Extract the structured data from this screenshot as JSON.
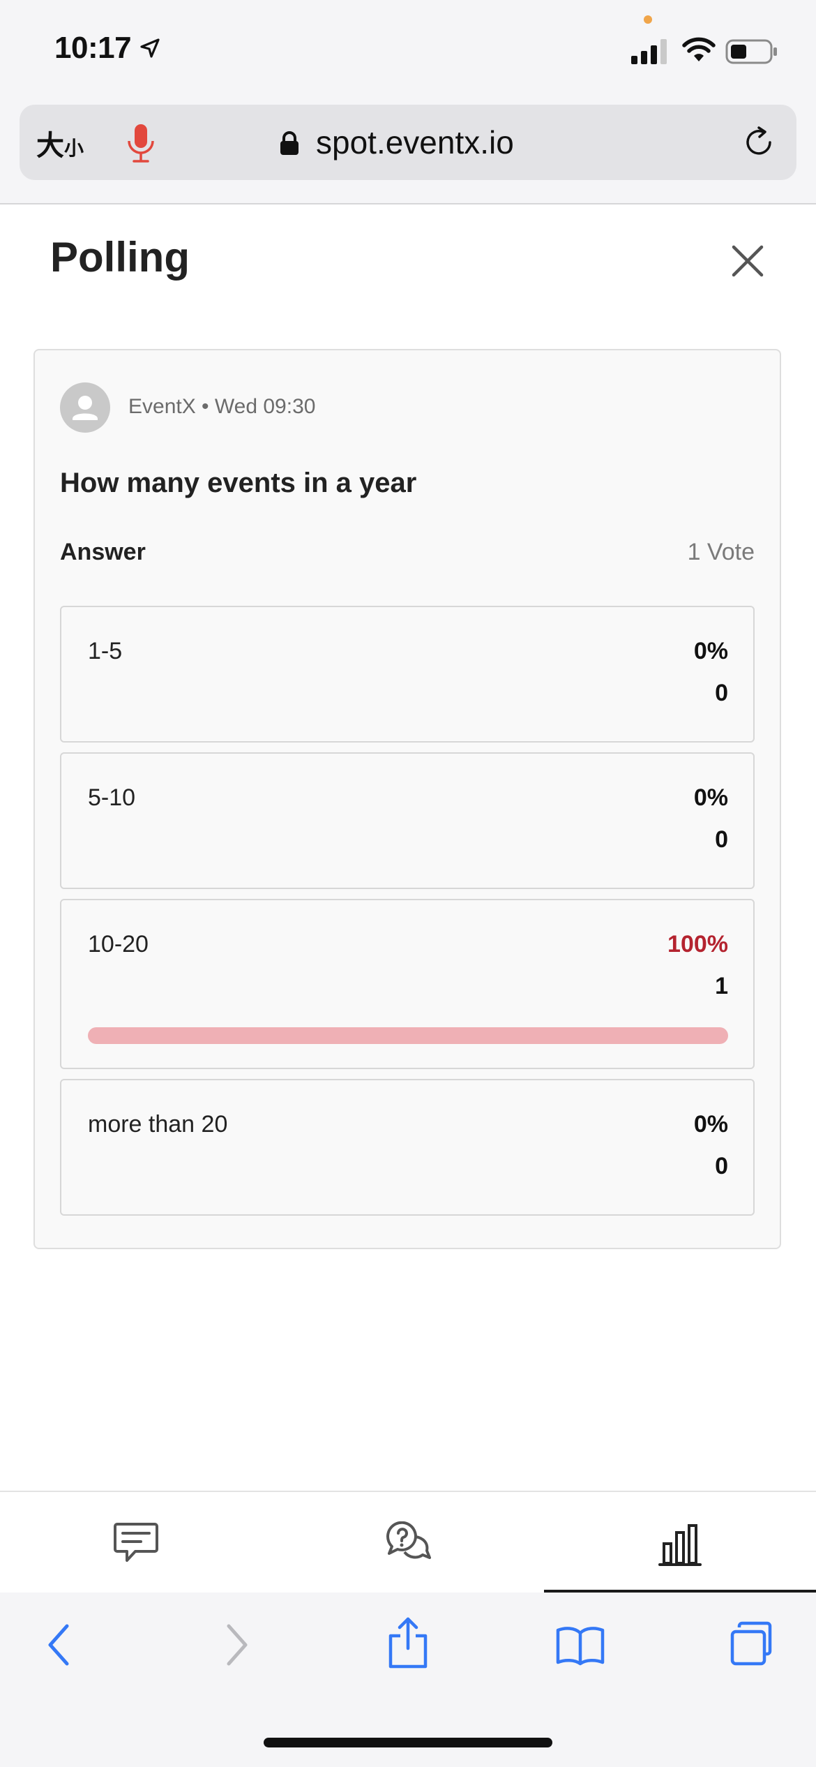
{
  "status_bar": {
    "time": "10:17"
  },
  "browser": {
    "text_size_label": "大",
    "text_size_label_small": "小",
    "url": "spot.eventx.io"
  },
  "page": {
    "title": "Polling"
  },
  "poll": {
    "author": "EventX",
    "separator": "•",
    "time": "Wed 09:30",
    "meta": "EventX • Wed 09:30",
    "question": "How many events in a year",
    "answer_label": "Answer",
    "vote_count": "1 Vote",
    "options": [
      {
        "label": "1-5",
        "percent": "0%",
        "votes": "0",
        "fraction": 0
      },
      {
        "label": "5-10",
        "percent": "0%",
        "votes": "0",
        "fraction": 0
      },
      {
        "label": "10-20",
        "percent": "100%",
        "votes": "1",
        "fraction": 1
      },
      {
        "label": "more than 20",
        "percent": "0%",
        "votes": "0",
        "fraction": 0
      }
    ]
  },
  "tabs": [
    {
      "name": "chat",
      "icon": "chat-icon",
      "active": false
    },
    {
      "name": "qa",
      "icon": "question-bubble-icon",
      "active": false
    },
    {
      "name": "polling",
      "icon": "bar-chart-icon",
      "active": true
    }
  ],
  "colors": {
    "accent": "#b4232f",
    "progress_fill": "#efb0b5",
    "safari_blue": "#3478f6"
  }
}
